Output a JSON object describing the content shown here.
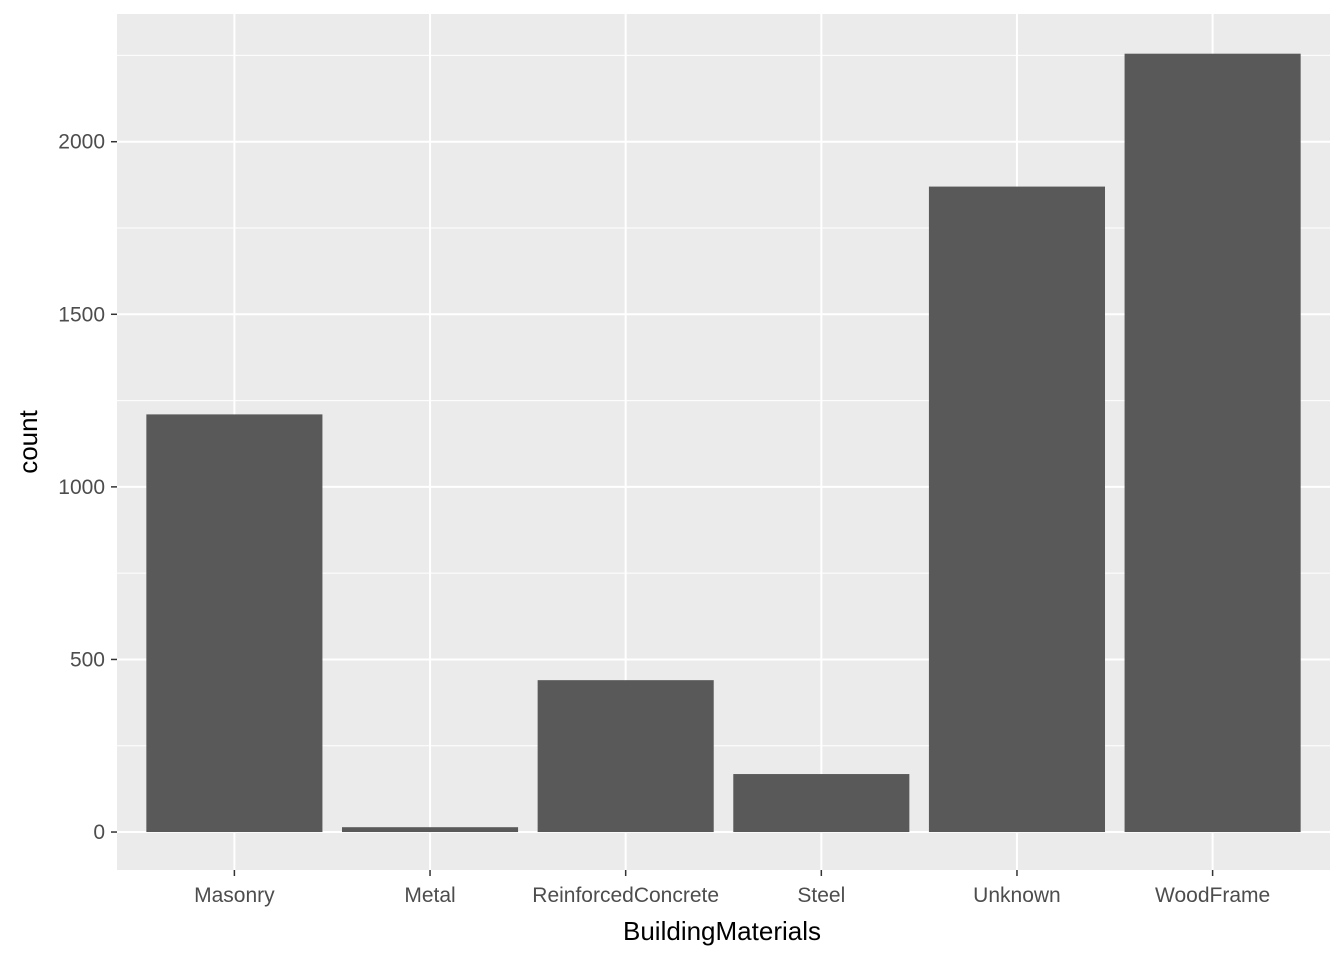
{
  "chart_data": {
    "type": "bar",
    "title": "",
    "xlabel": "BuildingMaterials",
    "ylabel": "count",
    "categories": [
      "Masonry",
      "Metal",
      "ReinforcedConcrete",
      "Steel",
      "Unknown",
      "WoodFrame"
    ],
    "values": [
      1210,
      14,
      440,
      168,
      1870,
      2255
    ],
    "ylim": [
      -110,
      2370
    ],
    "yticks": [
      0,
      500,
      1000,
      1500,
      2000
    ],
    "ytick_labels": [
      "0",
      "500",
      "1000",
      "1500",
      "2000"
    ],
    "grid": true,
    "legend": "none"
  },
  "colors": {
    "panel_background": "#ebebeb",
    "grid_major": "#ffffff",
    "bar_fill": "#595959",
    "tick_label": "#4d4d4d",
    "axis_title": "#000000"
  }
}
